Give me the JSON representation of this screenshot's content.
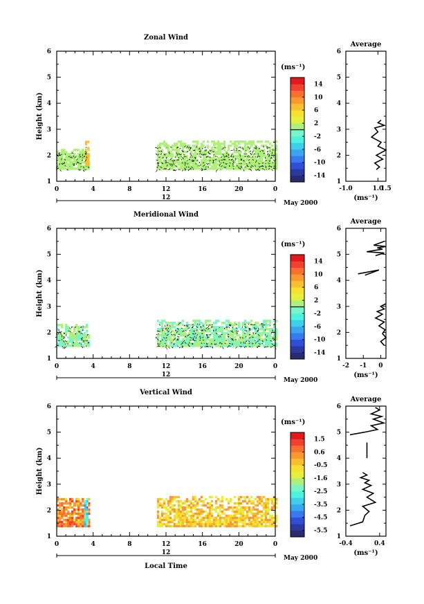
{
  "chart_data": [
    {
      "type": "heatmap",
      "title": "Zonal Wind",
      "ylabel": "Height (km)",
      "x_ticks": [
        "0",
        "4",
        "8",
        "12",
        "16",
        "20",
        "0"
      ],
      "xlim": [
        0,
        24
      ],
      "ylim": [
        1,
        6
      ],
      "y_ticks": [
        "1",
        "2",
        "3",
        "4",
        "5",
        "6"
      ],
      "date_label": "12",
      "date_suffix": "May 2000",
      "colorbar": {
        "unit": "(ms⁻¹)",
        "ticks": [
          "14",
          "10",
          "6",
          "2",
          "-2",
          "-6",
          "-10",
          "-14"
        ],
        "range": [
          -16,
          16
        ],
        "zero_line": 0
      },
      "data_regions": [
        {
          "t_start": 0.0,
          "t_end": 3.6,
          "h_start": 1.45,
          "h_end": 2.2,
          "value": 1.0
        },
        {
          "t_start": 3.1,
          "t_end": 3.4,
          "h_start": 1.6,
          "h_end": 2.5,
          "value": 7.0
        },
        {
          "t_start": 11.0,
          "t_end": 24.0,
          "h_start": 1.45,
          "h_end": 2.5,
          "value": 1.0
        }
      ],
      "profile": {
        "title": "Average",
        "xlabel": "(ms⁻¹)",
        "x_ticks": [
          "-1.0",
          "1.0",
          "1.5"
        ],
        "xlim": [
          -1.0,
          1.5
        ],
        "ylim": [
          1,
          6
        ],
        "y_ticks": [
          "1",
          "2",
          "3",
          "4",
          "5",
          "6"
        ],
        "x": [
          0.9,
          1.1,
          0.8,
          1.3,
          0.9,
          1.5,
          1.0,
          1.2,
          0.6,
          1.0,
          0.8,
          1.4,
          1.0,
          1.2
        ],
        "y": [
          1.45,
          1.55,
          1.7,
          1.85,
          2.0,
          2.2,
          2.35,
          2.5,
          2.7,
          2.9,
          3.05,
          3.15,
          3.25,
          3.35
        ]
      }
    },
    {
      "type": "heatmap",
      "title": "Meridional Wind",
      "ylabel": "Height (km)",
      "x_ticks": [
        "0",
        "4",
        "8",
        "12",
        "16",
        "20",
        "0"
      ],
      "xlim": [
        0,
        24
      ],
      "ylim": [
        1,
        6
      ],
      "y_ticks": [
        "1",
        "2",
        "3",
        "4",
        "5",
        "6"
      ],
      "date_label": "12",
      "date_suffix": "May 2000",
      "colorbar": {
        "unit": "(ms⁻¹)",
        "ticks": [
          "14",
          "10",
          "6",
          "2",
          "-2",
          "-6",
          "-10",
          "-14"
        ],
        "range": [
          -16,
          16
        ],
        "zero_line": 0
      },
      "data_regions": [
        {
          "t_start": 0.0,
          "t_end": 3.6,
          "h_start": 1.45,
          "h_end": 2.3,
          "value": 0.0
        },
        {
          "t_start": 11.0,
          "t_end": 24.0,
          "h_start": 1.45,
          "h_end": 2.45,
          "value": 0.0
        }
      ],
      "profile": {
        "title": "Average",
        "xlabel": "(ms⁻¹)",
        "x_ticks": [
          "-2",
          "-1",
          "0"
        ],
        "xlim": [
          -2,
          0.3
        ],
        "ylim": [
          1,
          6
        ],
        "y_ticks": [
          "1",
          "2",
          "3",
          "4",
          "5",
          "6"
        ],
        "segments": [
          {
            "x": [
              0.2,
              0.0,
              0.3,
              0.1,
              0.25,
              -0.1,
              0.2,
              -0.3,
              0.1,
              -0.2,
              0.2,
              0.0,
              0.3
            ],
            "y": [
              1.5,
              1.65,
              1.8,
              1.95,
              2.1,
              2.25,
              2.4,
              2.55,
              2.7,
              2.8,
              2.9,
              3.0,
              3.1
            ]
          },
          {
            "x": [
              -1.3,
              -0.1,
              -0.9
            ],
            "y": [
              4.25,
              4.4,
              4.2
            ]
          },
          {
            "x": [
              -0.3,
              0.2,
              -0.8,
              0.1,
              -0.2,
              0.3,
              -0.4,
              0.0,
              0.2
            ],
            "y": [
              4.95,
              5.05,
              5.1,
              5.2,
              5.25,
              5.3,
              5.35,
              5.45,
              5.5
            ]
          }
        ]
      }
    },
    {
      "type": "heatmap",
      "title": "Vertical Wind",
      "ylabel": "Height (km)",
      "x_ticks": [
        "0",
        "4",
        "8",
        "12",
        "16",
        "20",
        "0"
      ],
      "xlim": [
        0,
        24
      ],
      "ylim": [
        1,
        6
      ],
      "y_ticks": [
        "1",
        "2",
        "3",
        "4",
        "5",
        "6"
      ],
      "date_label": "12",
      "date_suffix": "May 2000",
      "xlabel": "Local Time",
      "colorbar": {
        "unit": "(ms⁻¹)",
        "ticks": [
          "1.5",
          "0.6",
          "-0.5",
          "-1.6",
          "-2.5",
          "-3.5",
          "-4.5",
          "-5.5"
        ],
        "range": [
          -6,
          2
        ],
        "zero_line": null
      },
      "data_regions": [
        {
          "t_start": 0.0,
          "t_end": 3.6,
          "h_start": 1.35,
          "h_end": 2.4,
          "value": 0.4
        },
        {
          "t_start": 3.0,
          "t_end": 3.3,
          "h_start": 1.35,
          "h_end": 2.4,
          "value": -3.0
        },
        {
          "t_start": 11.0,
          "t_end": 24.0,
          "h_start": 1.35,
          "h_end": 2.5,
          "value": -0.5
        }
      ],
      "profile": {
        "title": "Average",
        "xlabel": "(ms⁻¹)",
        "x_ticks": [
          "-0.4",
          "0.4"
        ],
        "xlim": [
          -0.4,
          0.55
        ],
        "ylim": [
          1,
          6
        ],
        "y_ticks": [
          "1",
          "2",
          "3",
          "4",
          "5",
          "6"
        ],
        "segments": [
          {
            "x": [
              -0.3,
              0.0,
              0.05,
              0.15,
              0.0,
              0.3,
              0.1,
              0.25,
              0.0,
              0.2,
              0.05,
              0.15,
              -0.05,
              0.1,
              0.0
            ],
            "y": [
              1.4,
              1.55,
              1.8,
              1.95,
              2.15,
              2.3,
              2.5,
              2.65,
              2.8,
              2.95,
              3.05,
              3.15,
              3.25,
              3.35,
              3.45
            ]
          },
          {
            "x": [
              0.1,
              0.1
            ],
            "y": [
              4.0,
              4.6
            ]
          },
          {
            "x": [
              -0.3,
              0.05,
              0.35,
              0.2,
              0.5,
              0.25,
              0.45,
              0.2,
              0.4,
              0.3
            ],
            "y": [
              4.9,
              5.0,
              5.1,
              5.25,
              5.35,
              5.5,
              5.6,
              5.7,
              5.85,
              5.95
            ]
          }
        ]
      }
    }
  ]
}
